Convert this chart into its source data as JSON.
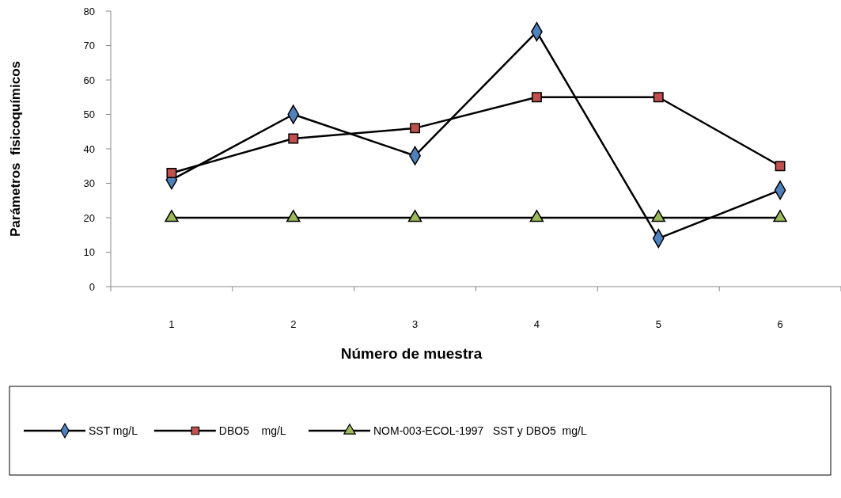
{
  "chart_data": {
    "type": "line",
    "xlabel": "Número de muestra",
    "ylabel": "Parámetros  fisicoquímicos",
    "categories": [
      "1",
      "2",
      "3",
      "4",
      "5",
      "6"
    ],
    "series": [
      {
        "name": "SST mg/L",
        "color": "#4f81bd",
        "marker": "diamond",
        "values": [
          31,
          50,
          38,
          74,
          14,
          28
        ]
      },
      {
        "name": "DBO5    mg/L",
        "color": "#c0504d",
        "marker": "square",
        "values": [
          33,
          43,
          46,
          55,
          55,
          35
        ]
      },
      {
        "name": "NOM-003-ECOL-1997   SST y DBO5  mg/L",
        "color": "#9bbb59",
        "marker": "triangle",
        "values": [
          20,
          20,
          20,
          20,
          20,
          20
        ]
      }
    ],
    "ylim": [
      0,
      80
    ],
    "yticks": [
      0,
      10,
      20,
      30,
      40,
      50,
      60,
      70,
      80
    ],
    "grid": false,
    "legend": "bottom"
  }
}
